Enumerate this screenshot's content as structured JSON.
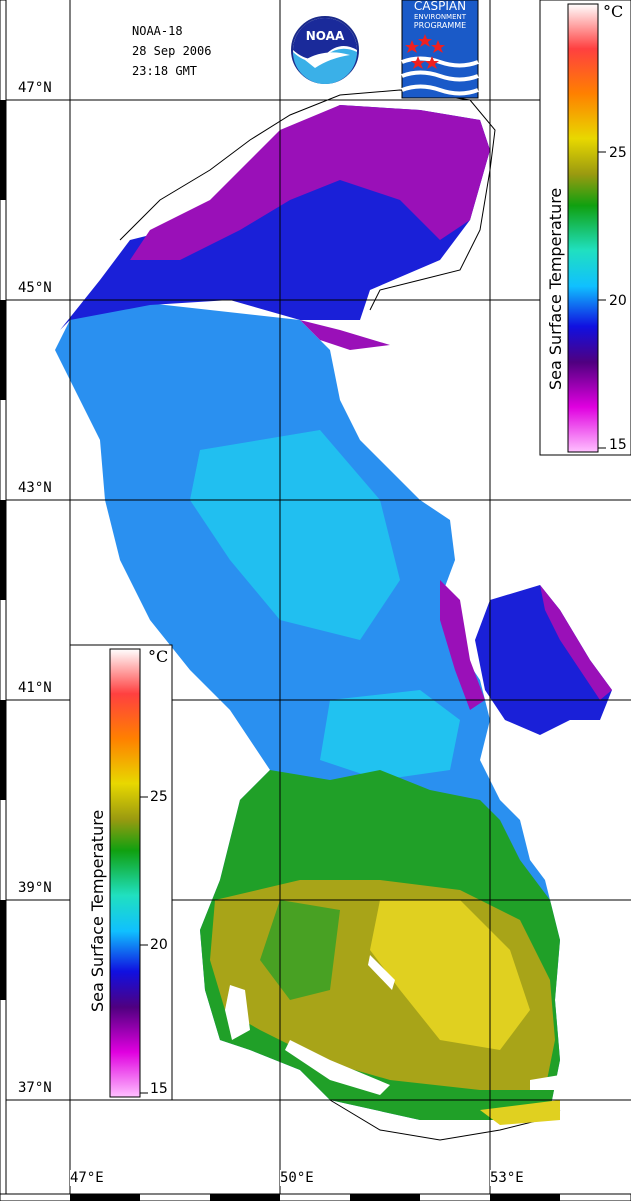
{
  "header": {
    "satellite": "NOAA-18",
    "date": "28 Sep 2006",
    "time": "23:18 GMT"
  },
  "logos": {
    "noaa": "NOAA",
    "caspian": [
      "CASPIAN",
      "ENVIRONMENT",
      "PROGRAMME"
    ]
  },
  "latitude_labels": [
    "47°N",
    "45°N",
    "43°N",
    "41°N",
    "39°N",
    "37°N"
  ],
  "longitude_labels": [
    "47°E",
    "50°E",
    "53°E"
  ],
  "colorbar": {
    "title": "Sea Surface Temperature",
    "unit": "°C",
    "ticks": [
      "25",
      "20",
      "15"
    ],
    "colors": [
      "#ffffff",
      "#ff4040",
      "#ff8000",
      "#e8d800",
      "#9a9a10",
      "#10a010",
      "#20e0c0",
      "#10c0ff",
      "#1010e0",
      "#500080",
      "#e000e0",
      "#ffc0ff"
    ]
  },
  "colors": {
    "cold": "#9a10b8",
    "cool": "#1a20d8",
    "mid": "#2a90f0",
    "mild": "#20c8f0",
    "warm": "#20a028",
    "hot": "#a8a418",
    "hottest": "#e0d020"
  }
}
